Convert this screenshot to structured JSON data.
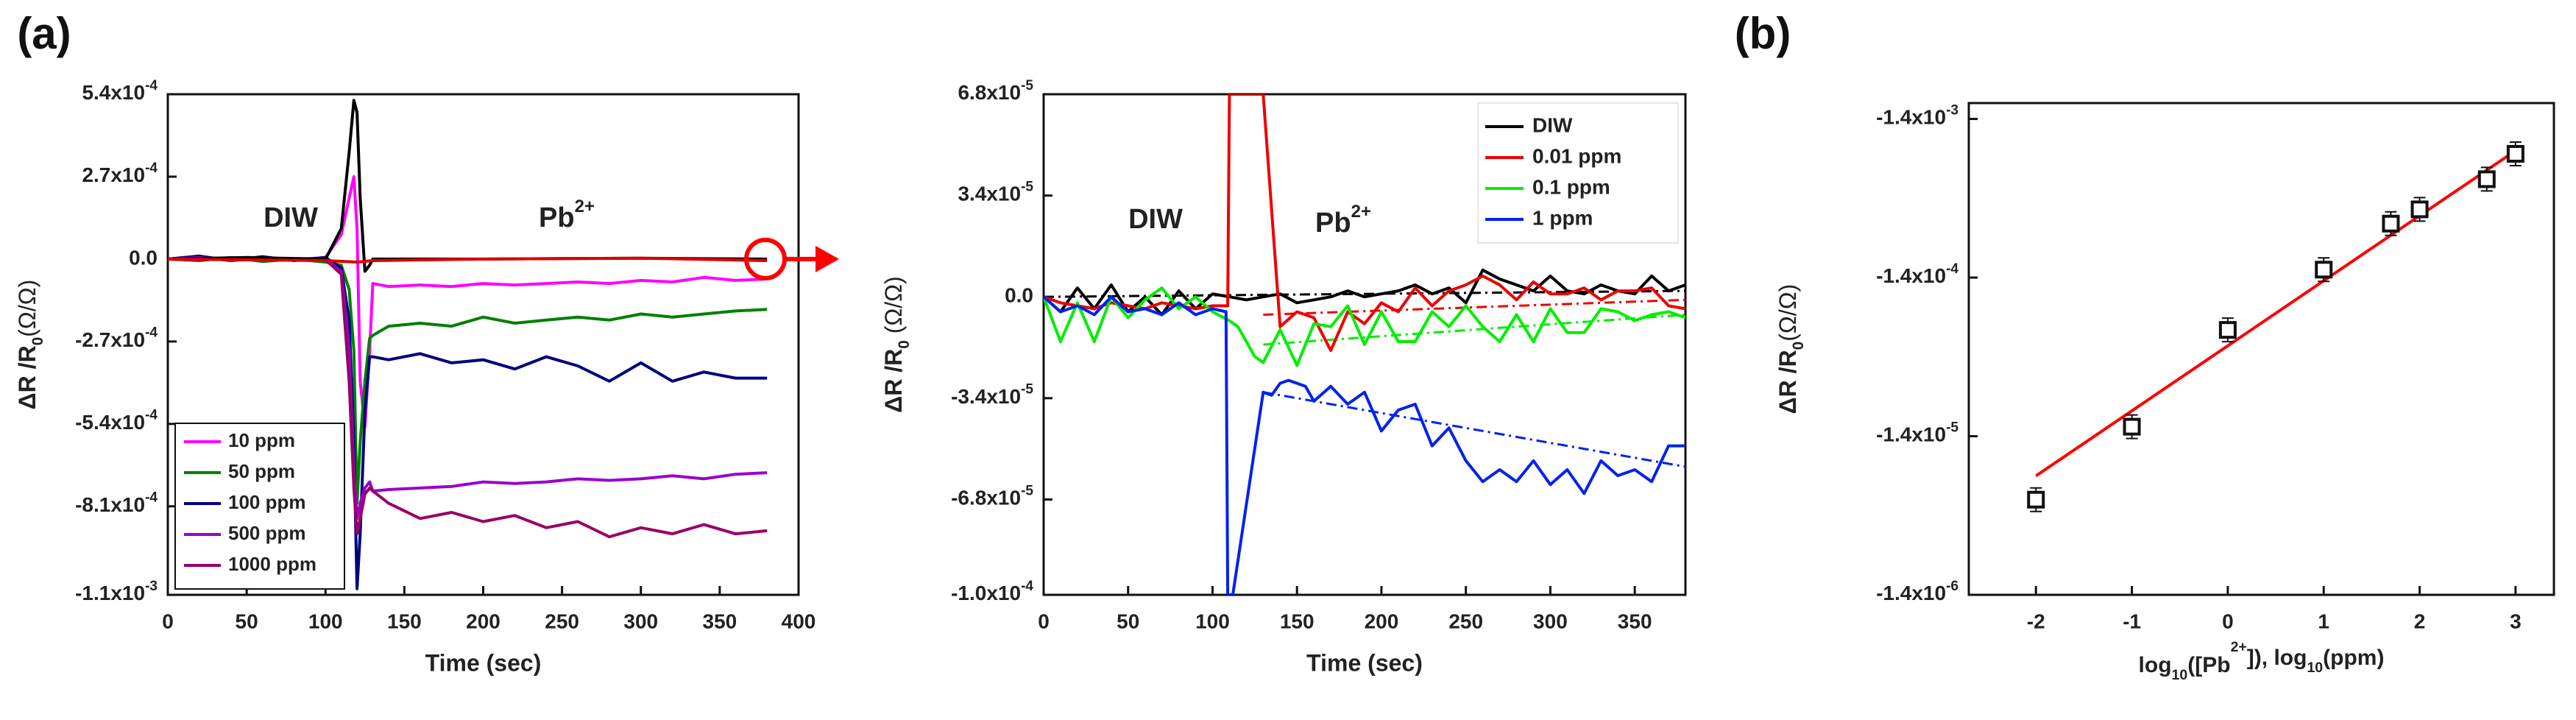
{
  "chart_data": [
    {
      "id": "a_main",
      "type": "line",
      "panel_label": "(a)",
      "title": "",
      "xlabel": "Time (sec)",
      "ylabel": "ΔR /R0(Ω/Ω)",
      "xlim": [
        0,
        400
      ],
      "ylim": [
        -0.0011,
        0.00054
      ],
      "xticks": [
        0,
        50,
        100,
        150,
        200,
        250,
        300,
        350,
        400
      ],
      "xtick_labels": [
        "0",
        "50",
        "100",
        "150",
        "200",
        "250",
        "300",
        "350",
        "400"
      ],
      "yticks": [
        0.00054,
        0.00027,
        0,
        -0.00027,
        -0.00054,
        -0.00081,
        -0.0011
      ],
      "ytick_labels": [
        "5.4x10-4",
        "2.7x10-4",
        "0.0",
        "-2.7x10-4",
        "-5.4x10-4",
        "-8.1x10-4",
        "-1.1x10-3"
      ],
      "annotations": [
        "DIW",
        "Pb2+"
      ],
      "legend_position": "bottom-left",
      "series": [
        {
          "name": "10 ppm",
          "color": "#ff00ff",
          "x": [
            0,
            20,
            40,
            60,
            80,
            100,
            110,
            115,
            118,
            120,
            122,
            125,
            128,
            130,
            140,
            160,
            180,
            200,
            220,
            240,
            260,
            280,
            300,
            320,
            340,
            360,
            380
          ],
          "y": [
            0,
            8e-06,
            -4e-06,
            6e-06,
            -2e-06,
            5e-06,
            8e-05,
            0.0002,
            0.00027,
            0.0001,
            -0.0004,
            -0.00055,
            -0.0003,
            -8e-05,
            -9e-05,
            -8.5e-05,
            -9e-05,
            -8e-05,
            -8.5e-05,
            -8e-05,
            -7.5e-05,
            -8e-05,
            -7e-05,
            -7.5e-05,
            -6e-05,
            -7e-05,
            -6.5e-05
          ]
        },
        {
          "name": "50 ppm",
          "color": "#008000",
          "x": [
            0,
            20,
            40,
            60,
            80,
            100,
            110,
            115,
            118,
            120,
            122,
            125,
            128,
            130,
            140,
            160,
            180,
            200,
            220,
            240,
            260,
            280,
            300,
            320,
            340,
            360,
            380
          ],
          "y": [
            0,
            -5e-06,
            5e-06,
            -8e-06,
            0,
            -1e-05,
            -2e-05,
            -0.0001,
            -0.0003,
            -0.0008,
            -0.0006,
            -0.0004,
            -0.00026,
            -0.00025,
            -0.00022,
            -0.00021,
            -0.00022,
            -0.00019,
            -0.00021,
            -0.0002,
            -0.00019,
            -0.0002,
            -0.00018,
            -0.00019,
            -0.00018,
            -0.00017,
            -0.000165
          ]
        },
        {
          "name": "100 ppm",
          "color": "#000080",
          "x": [
            0,
            20,
            40,
            60,
            80,
            100,
            110,
            115,
            118,
            120,
            122,
            125,
            128,
            130,
            140,
            160,
            180,
            200,
            220,
            240,
            260,
            280,
            300,
            320,
            340,
            360,
            380
          ],
          "y": [
            0,
            1e-05,
            -5e-06,
            8e-06,
            -5e-06,
            5e-06,
            -3e-05,
            -0.0002,
            -0.0006,
            -0.00108,
            -0.0009,
            -0.0005,
            -0.00032,
            -0.00032,
            -0.00033,
            -0.00031,
            -0.00034,
            -0.00033,
            -0.00036,
            -0.00032,
            -0.00035,
            -0.0004,
            -0.00034,
            -0.0004,
            -0.00037,
            -0.00039,
            -0.00039
          ]
        },
        {
          "name": "500 ppm",
          "color": "#9900cc",
          "x": [
            0,
            20,
            40,
            60,
            80,
            100,
            110,
            115,
            118,
            120,
            122,
            125,
            128,
            130,
            140,
            160,
            180,
            200,
            220,
            240,
            260,
            280,
            300,
            320,
            340,
            360,
            380
          ],
          "y": [
            0,
            5e-06,
            -5e-06,
            3e-06,
            -2e-06,
            0,
            -4e-05,
            -0.0003,
            -0.0007,
            -0.00085,
            -0.0008,
            -0.00075,
            -0.00073,
            -0.00076,
            -0.000755,
            -0.00075,
            -0.000745,
            -0.00073,
            -0.000735,
            -0.00073,
            -0.00072,
            -0.000725,
            -0.00072,
            -0.00071,
            -0.00072,
            -0.000705,
            -0.0007
          ]
        },
        {
          "name": "1000 ppm",
          "color": "#990066",
          "x": [
            0,
            20,
            40,
            60,
            80,
            100,
            110,
            115,
            118,
            120,
            122,
            125,
            128,
            130,
            140,
            160,
            180,
            200,
            220,
            240,
            260,
            280,
            300,
            320,
            340,
            360,
            380
          ],
          "y": [
            0,
            -3e-06,
            4e-06,
            0,
            -3e-06,
            -2e-06,
            -5e-05,
            -0.0004,
            -0.00075,
            -0.0009,
            -0.00085,
            -0.00077,
            -0.00075,
            -0.00076,
            -0.0008,
            -0.00085,
            -0.00083,
            -0.00086,
            -0.00084,
            -0.00088,
            -0.00086,
            -0.00091,
            -0.00088,
            -0.0009,
            -0.00087,
            -0.0009,
            -0.00089
          ]
        },
        {
          "name": "DIW",
          "color": "#000000",
          "legend": false,
          "x": [
            0,
            50,
            100,
            110,
            115,
            118,
            120,
            122,
            125,
            128,
            130,
            200,
            300,
            380
          ],
          "y": [
            0,
            5e-06,
            0,
            0.0001,
            0.00035,
            0.00052,
            0.00048,
            0.0002,
            -4e-05,
            -2e-05,
            0,
            0,
            3e-06,
            0
          ]
        },
        {
          "name": "0.01 ppm",
          "color": "#dd0000",
          "legend": false,
          "x": [
            0,
            100,
            120,
            130,
            200,
            300,
            380
          ],
          "y": [
            0,
            -5e-06,
            -1e-05,
            -5e-06,
            0,
            3e-06,
            -5e-06
          ]
        }
      ]
    },
    {
      "id": "a_inset",
      "type": "line",
      "panel_label": "",
      "xlabel": "Time (sec)",
      "ylabel": "ΔR /R0 (Ω/Ω)",
      "xlim": [
        0,
        380
      ],
      "ylim": [
        -0.0001,
        6.8e-05
      ],
      "xticks": [
        0,
        50,
        100,
        150,
        200,
        250,
        300,
        350
      ],
      "xtick_labels": [
        "0",
        "50",
        "100",
        "150",
        "200",
        "250",
        "300",
        "350"
      ],
      "yticks": [
        6.8e-05,
        3.4e-05,
        0,
        -3.4e-05,
        -6.8e-05,
        -0.0001
      ],
      "ytick_labels": [
        "6.8x10-5",
        "3.4x10-5",
        "0.0",
        "-3.4x10-5",
        "-6.8x10-5",
        "-1.0x10-4"
      ],
      "annotations": [
        "DIW",
        "Pb2+"
      ],
      "legend_position": "top-right",
      "series": [
        {
          "name": "DIW",
          "color": "#000000",
          "x": [
            0,
            10,
            20,
            30,
            40,
            50,
            60,
            70,
            80,
            90,
            100,
            110,
            120,
            130,
            140,
            150,
            160,
            170,
            180,
            190,
            200,
            210,
            220,
            230,
            240,
            250,
            260,
            270,
            280,
            290,
            300,
            310,
            320,
            330,
            340,
            350,
            360,
            370,
            380
          ],
          "y": [
            0,
            -5e-06,
            3e-06,
            -4e-06,
            4e-06,
            -5e-06,
            0,
            -6e-06,
            2e-06,
            -4e-06,
            1e-06,
            0,
            -1e-06,
            0,
            1e-06,
            -2e-06,
            -1e-06,
            0,
            2e-06,
            0,
            1e-06,
            2e-06,
            4e-06,
            1e-06,
            3e-06,
            -2e-06,
            9e-06,
            6e-06,
            4e-06,
            2e-06,
            7e-06,
            2e-06,
            1e-06,
            4e-06,
            2e-06,
            1e-06,
            7e-06,
            2e-06,
            4e-06
          ]
        },
        {
          "name": "0.01 ppm",
          "color": "#ee0000",
          "x": [
            0,
            10,
            20,
            30,
            40,
            50,
            60,
            70,
            80,
            90,
            100,
            109,
            110,
            112,
            114,
            116,
            118,
            120,
            122,
            124,
            126,
            128,
            130,
            140,
            150,
            160,
            170,
            180,
            190,
            200,
            210,
            220,
            230,
            240,
            250,
            260,
            270,
            280,
            290,
            300,
            310,
            320,
            330,
            340,
            350,
            360,
            370,
            380
          ],
          "y": [
            0,
            -2e-06,
            -3e-06,
            -4e-06,
            -2e-06,
            -3e-06,
            -4e-06,
            -2e-06,
            -3e-06,
            -4e-06,
            -3e-06,
            -3e-06,
            6.8e-05,
            6.8e-05,
            6.8e-05,
            6.8e-05,
            6.8e-05,
            6.8e-05,
            6.8e-05,
            6.8e-05,
            6.8e-05,
            6.8e-05,
            6.8e-05,
            -1e-05,
            -5e-06,
            -7e-06,
            -1.8e-05,
            -5e-06,
            -9e-06,
            -2e-06,
            -5e-06,
            3e-06,
            -3e-06,
            2e-06,
            4e-06,
            7e-06,
            4e-06,
            -1e-06,
            5e-06,
            1e-06,
            1e-06,
            3e-06,
            -1e-06,
            2e-06,
            2e-06,
            3e-06,
            -3e-06,
            -4e-06
          ]
        },
        {
          "name": "0.1 ppm",
          "color": "#00ee00",
          "x": [
            0,
            10,
            20,
            30,
            40,
            50,
            60,
            70,
            80,
            90,
            100,
            110,
            115,
            120,
            125,
            130,
            140,
            150,
            160,
            170,
            180,
            190,
            200,
            210,
            220,
            230,
            240,
            250,
            260,
            270,
            280,
            290,
            300,
            310,
            320,
            330,
            340,
            350,
            360,
            370,
            380
          ],
          "y": [
            0,
            -1.5e-05,
            -2e-06,
            -1.5e-05,
            0,
            -7e-06,
            -1e-06,
            3e-06,
            -4e-06,
            0,
            -5e-06,
            -8e-06,
            -1e-05,
            -1.5e-05,
            -2e-05,
            -2.2e-05,
            -1.1e-05,
            -2.3e-05,
            -9e-06,
            -1e-05,
            -3e-06,
            -1.6e-05,
            -5e-06,
            -1.5e-05,
            -1.5e-05,
            -5e-06,
            -1e-05,
            -3e-06,
            -1e-05,
            -1.5e-05,
            -6e-06,
            -1.5e-05,
            -4e-06,
            -1.2e-05,
            -1.2e-05,
            -4e-06,
            -5e-06,
            -8e-06,
            -6e-06,
            -5e-06,
            -7e-06
          ]
        },
        {
          "name": "1 ppm",
          "color": "#0022ee",
          "x": [
            0,
            10,
            20,
            30,
            40,
            50,
            60,
            70,
            80,
            90,
            100,
            108,
            109,
            110,
            111,
            112,
            130,
            135,
            140,
            145,
            150,
            155,
            160,
            170,
            180,
            190,
            200,
            210,
            220,
            230,
            240,
            250,
            260,
            270,
            280,
            290,
            300,
            310,
            320,
            330,
            340,
            350,
            360,
            370,
            380
          ],
          "y": [
            0,
            -5e-06,
            -3e-06,
            -6e-06,
            0,
            -5e-06,
            -4e-06,
            -6e-06,
            -2e-06,
            -6e-06,
            -4e-06,
            -5e-06,
            -0.0001,
            -0.0001,
            -0.0001,
            -0.0001,
            -3.2e-05,
            -3.3e-05,
            -2.9e-05,
            -2.8e-05,
            -2.9e-05,
            -3e-05,
            -3.5e-05,
            -3e-05,
            -3.6e-05,
            -3.2e-05,
            -4.5e-05,
            -3.8e-05,
            -3.6e-05,
            -5e-05,
            -4.4e-05,
            -5.5e-05,
            -6.2e-05,
            -5.8e-05,
            -6.2e-05,
            -5.5e-05,
            -6.3e-05,
            -5.8e-05,
            -6.6e-05,
            -5.5e-05,
            -6e-05,
            -5.8e-05,
            -6.2e-05,
            -5e-05,
            -5e-05
          ]
        }
      ],
      "fit_lines": [
        {
          "for": "DIW",
          "color": "#000000",
          "x": [
            0,
            380
          ],
          "y": [
            0,
            2e-06
          ]
        },
        {
          "for": "0.01 ppm",
          "color": "#ee0000",
          "x": [
            130,
            380
          ],
          "y": [
            -6e-06,
            -1e-06
          ]
        },
        {
          "for": "0.1 ppm",
          "color": "#00ee00",
          "x": [
            130,
            380
          ],
          "y": [
            -1.6e-05,
            -6e-06
          ]
        },
        {
          "for": "1 ppm",
          "color": "#0022ee",
          "x": [
            130,
            380
          ],
          "y": [
            -3.2e-05,
            -5.7e-05
          ]
        }
      ]
    },
    {
      "id": "b",
      "type": "scatter",
      "panel_label": "(b)",
      "xlabel": "log10([Pb2+]), log10(ppm)",
      "ylabel": "ΔR /R0(Ω/Ω)",
      "xlim": [
        -2.7,
        3.4
      ],
      "ylim": [
        -6,
        -2.9
      ],
      "xticks": [
        -2,
        -1,
        0,
        1,
        2,
        3
      ],
      "xtick_labels": [
        "-2",
        "-1",
        "0",
        "1",
        "2",
        "3"
      ],
      "yticks": [
        -3,
        -4,
        -5,
        -6
      ],
      "ytick_labels": [
        "-1.4x10-3",
        "-1.4x10-4",
        "-1.4x10-5",
        "-1.4x10-6"
      ],
      "points": [
        {
          "x": -2,
          "y": -5.4
        },
        {
          "x": -1,
          "y": -4.94
        },
        {
          "x": 0,
          "y": -4.33
        },
        {
          "x": 1,
          "y": -3.95
        },
        {
          "x": 1.7,
          "y": -3.66
        },
        {
          "x": 2,
          "y": -3.57
        },
        {
          "x": 2.7,
          "y": -3.38
        },
        {
          "x": 3,
          "y": -3.22
        }
      ],
      "fit": {
        "x": [
          -2,
          3
        ],
        "y": [
          -5.25,
          -3.2
        ],
        "color": "#ff0000"
      }
    }
  ]
}
